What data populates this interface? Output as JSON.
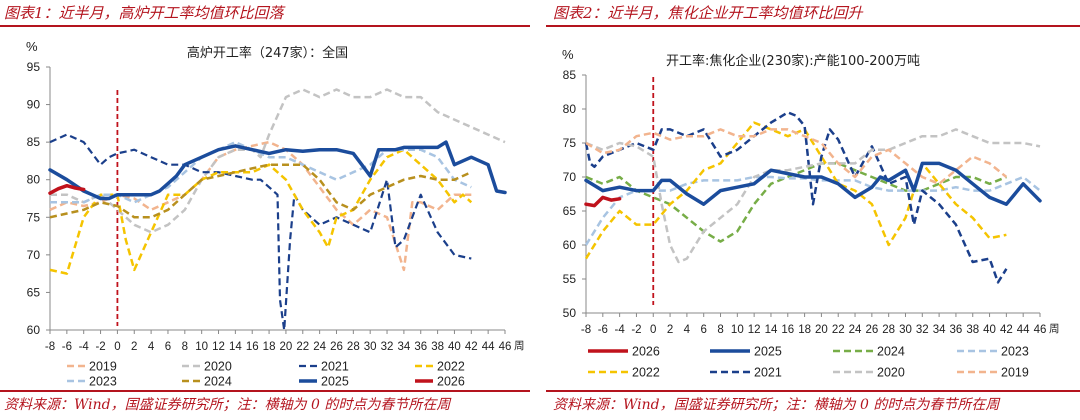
{
  "left": {
    "header": "图表1：近半月，高炉开工率均值环比回落",
    "source": "资料来源：Wind，国盛证券研究所；注：横轴为 0 的时点为春节所在周"
  },
  "right": {
    "header": "图表2：近半月，焦化企业开工率均值环比回升",
    "source": "资料来源：Wind，国盛证券研究所；注：横轴为 0 的时点为春节所在周"
  },
  "colors": {
    "2019": "#f2b48e",
    "2020": "#c3c3c3",
    "2021": "#1b3f8b",
    "2022": "#f5c400",
    "2023": "#a8c4e2",
    "2024": "#b8901e",
    "2025": "#1b4c9c",
    "2026": "#c0121c",
    "2024_green": "#77ad47",
    "header": "#b4141e",
    "divider": "#c0121c"
  },
  "chart_data": [
    {
      "type": "line",
      "title": "高炉开工率（247家）：全国",
      "ylabel": "%",
      "xlabel_suffix": "周",
      "xlim": [
        -8,
        46
      ],
      "ylim": [
        60,
        95
      ],
      "yticks": [
        60,
        65,
        70,
        75,
        80,
        85,
        90,
        95
      ],
      "xticks": [
        -8,
        -6,
        -4,
        -2,
        0,
        2,
        4,
        6,
        8,
        10,
        12,
        14,
        16,
        18,
        20,
        22,
        24,
        26,
        28,
        30,
        32,
        34,
        36,
        38,
        40,
        42,
        44,
        46
      ],
      "vline": 0,
      "legend_order": [
        "2019",
        "2020",
        "2021",
        "2022",
        "2023",
        "2024",
        "2025",
        "2026"
      ],
      "series": [
        {
          "name": "2019",
          "style": "dash",
          "width": 2.5,
          "x": [
            -8,
            -6,
            -4,
            -2,
            0,
            2,
            4,
            6,
            8,
            10,
            12,
            14,
            16,
            18,
            20,
            22,
            24,
            26,
            28,
            30,
            32,
            34,
            35,
            36,
            38,
            40,
            42
          ],
          "y": [
            76,
            77,
            76.5,
            77,
            78,
            77.5,
            76,
            77,
            78,
            80,
            83,
            84,
            84.5,
            85,
            84,
            82,
            79,
            76,
            74,
            76,
            75,
            68,
            77,
            77,
            76,
            78,
            78
          ]
        },
        {
          "name": "2020",
          "style": "dash",
          "width": 2.5,
          "x": [
            -8,
            -6,
            -4,
            -2,
            0,
            2,
            4,
            6,
            8,
            10,
            12,
            14,
            16,
            17,
            18,
            20,
            22,
            24,
            26,
            28,
            30,
            32,
            34,
            36,
            38,
            40,
            42,
            44,
            46
          ],
          "y": [
            78,
            78,
            77,
            78,
            76,
            74,
            73,
            74,
            76,
            80,
            83,
            84,
            84,
            83,
            86,
            91,
            92,
            91,
            92,
            91,
            91,
            92,
            91,
            91,
            89,
            88,
            87,
            86,
            85
          ]
        },
        {
          "name": "2021",
          "style": "dash",
          "width": 2.2,
          "x": [
            -8,
            -6,
            -4,
            -2,
            -1,
            0,
            2,
            4,
            6,
            8,
            10,
            12,
            14,
            16,
            17,
            18,
            19,
            19.3,
            19.8,
            20.5,
            21,
            22,
            24,
            26,
            28,
            30,
            32,
            33,
            34,
            36,
            38,
            40,
            42
          ],
          "y": [
            85,
            86,
            85,
            82,
            83,
            83.5,
            84,
            83,
            82,
            82,
            81,
            81,
            80.5,
            80,
            80,
            79,
            78,
            64,
            60,
            72,
            78,
            76,
            74,
            75,
            74,
            73,
            80,
            71,
            72,
            78,
            73,
            70,
            69.5
          ]
        },
        {
          "name": "2022",
          "style": "dash",
          "width": 2.5,
          "x": [
            -8,
            -6,
            -4,
            -2,
            0,
            1,
            2,
            4,
            6,
            8,
            10,
            12,
            14,
            16,
            18,
            20,
            22,
            24,
            25,
            26,
            28,
            30,
            32,
            34,
            36,
            38,
            40,
            41,
            42
          ],
          "y": [
            68,
            67.5,
            75,
            78,
            78,
            72,
            68,
            73,
            78,
            78,
            80,
            81,
            81,
            81,
            82,
            80,
            76,
            73,
            71,
            75,
            76,
            80,
            83,
            84,
            82,
            80,
            77,
            78,
            77
          ]
        },
        {
          "name": "2023",
          "style": "dash",
          "width": 2.5,
          "x": [
            -8,
            -6,
            -4,
            -2,
            0,
            2,
            4,
            6,
            8,
            10,
            12,
            14,
            16,
            18,
            20,
            22,
            24,
            26,
            28,
            30,
            32,
            34,
            36,
            38,
            40,
            42
          ],
          "y": [
            77,
            77,
            77,
            78,
            78,
            77,
            78,
            79,
            81,
            83,
            84,
            85,
            84,
            83,
            83,
            82,
            81,
            80,
            81,
            82,
            84,
            84,
            84,
            83,
            80,
            79
          ]
        },
        {
          "name": "2024",
          "style": "dash",
          "width": 2.5,
          "x": [
            -8,
            -6,
            -4,
            -2,
            0,
            2,
            4,
            6,
            8,
            10,
            12,
            14,
            16,
            18,
            20,
            22,
            24,
            26,
            28,
            30,
            32,
            34,
            36,
            38,
            40,
            42
          ],
          "y": [
            75,
            75.5,
            76,
            77,
            76.5,
            75,
            75,
            76,
            78,
            80,
            80.5,
            81,
            81.5,
            82,
            82,
            82,
            80,
            77,
            76,
            78,
            79,
            80,
            80.5,
            80,
            80,
            81
          ]
        },
        {
          "name": "2025",
          "style": "solid",
          "width": 3.5,
          "x": [
            -8,
            -6,
            -4,
            -3,
            -2,
            -1,
            0,
            1,
            2,
            3,
            4,
            5,
            6,
            7,
            8,
            10,
            12,
            14,
            16,
            18,
            20,
            22,
            24,
            26,
            28,
            29,
            30,
            31,
            32,
            33,
            34,
            36,
            38,
            39,
            40,
            42,
            44,
            45,
            46
          ],
          "y": [
            81.3,
            80,
            78.5,
            78,
            77.5,
            77.5,
            78,
            78,
            78,
            78,
            78,
            78.5,
            79.5,
            80.5,
            82,
            83,
            84,
            84.5,
            84,
            83.5,
            84,
            83.8,
            84,
            84,
            83.5,
            82,
            80.5,
            84,
            84,
            84,
            84.3,
            84.3,
            84.3,
            85,
            82,
            83,
            82,
            78.5,
            78.3
          ]
        },
        {
          "name": "2026",
          "style": "solid",
          "width": 3.5,
          "x": [
            -8,
            -7,
            -6,
            -5,
            -4
          ],
          "y": [
            78.2,
            78.8,
            79.2,
            78.9,
            78.7
          ]
        }
      ]
    },
    {
      "type": "line",
      "title": "开工率:焦化企业(230家):产能100-200万吨",
      "ylabel": "%",
      "xlabel_suffix": "周",
      "xlim": [
        -8,
        46
      ],
      "ylim": [
        50,
        85
      ],
      "yticks": [
        50,
        55,
        60,
        65,
        70,
        75,
        80,
        85
      ],
      "xticks": [
        -8,
        -6,
        -4,
        -2,
        0,
        2,
        4,
        6,
        8,
        10,
        12,
        14,
        16,
        18,
        20,
        22,
        24,
        26,
        28,
        30,
        32,
        34,
        36,
        38,
        40,
        42,
        44,
        46
      ],
      "vline": 0,
      "legend_order": [
        "2026",
        "2025",
        "2024",
        "2023",
        "2022",
        "2021",
        "2020",
        "2019"
      ],
      "series": [
        {
          "name": "2026",
          "style": "solid",
          "width": 3.5,
          "x": [
            -8,
            -7,
            -6,
            -5,
            -4
          ],
          "y": [
            66,
            65.8,
            67,
            66.6,
            66.8
          ]
        },
        {
          "name": "2025",
          "style": "solid",
          "width": 3.5,
          "x": [
            -8,
            -6,
            -4,
            -2,
            0,
            1,
            2,
            4,
            6,
            8,
            10,
            12,
            14,
            16,
            18,
            20,
            22,
            24,
            26,
            27,
            28,
            30,
            31,
            32,
            34,
            36,
            38,
            40,
            42,
            44,
            46
          ],
          "y": [
            69.5,
            68,
            68.5,
            68,
            68,
            69.5,
            69.5,
            67.5,
            66,
            68,
            68.5,
            69,
            71,
            70.5,
            70,
            70,
            69,
            67,
            68.5,
            70,
            69.5,
            71,
            68,
            72,
            72,
            71,
            69,
            67,
            66,
            69,
            66.5
          ]
        },
        {
          "name": "2024",
          "style": "dash",
          "width": 2.5,
          "x": [
            -8,
            -6,
            -4,
            -2,
            0,
            2,
            4,
            6,
            8,
            10,
            12,
            14,
            16,
            18,
            20,
            22,
            24,
            26,
            28,
            30,
            32,
            34,
            36,
            38,
            40,
            42
          ],
          "y": [
            70,
            69,
            70,
            68,
            67,
            66,
            64,
            62,
            60.5,
            62,
            66,
            69,
            70,
            71,
            72,
            72,
            71,
            70,
            69,
            68,
            68,
            69,
            70,
            70,
            69,
            70
          ]
        },
        {
          "name": "2023",
          "style": "dash",
          "width": 2.5,
          "x": [
            -8,
            -6,
            -4,
            -2,
            0,
            2,
            4,
            6,
            8,
            10,
            12,
            14,
            16,
            18,
            20,
            22,
            24,
            26,
            28,
            30,
            32,
            34,
            36,
            38,
            40,
            42,
            44,
            46
          ],
          "y": [
            60,
            64,
            67,
            68,
            68,
            68,
            69,
            69.5,
            69.5,
            69.5,
            70,
            70,
            69.8,
            69.8,
            69.5,
            69.5,
            69.5,
            68.5,
            68,
            68,
            68,
            68,
            68.5,
            68,
            68,
            69,
            70,
            68
          ]
        },
        {
          "name": "2022",
          "style": "dash",
          "width": 2.5,
          "x": [
            -8,
            -6,
            -4,
            -2,
            0,
            2,
            4,
            6,
            8,
            10,
            12,
            14,
            16,
            17,
            18,
            20,
            22,
            24,
            26,
            28,
            30,
            32,
            34,
            36,
            38,
            40,
            42
          ],
          "y": [
            58,
            62,
            65,
            63,
            63,
            66,
            68,
            71,
            72,
            75,
            78,
            77,
            76,
            76.5,
            77,
            73,
            69,
            68,
            66,
            60,
            64,
            72,
            69,
            66,
            64,
            61,
            61.5
          ]
        },
        {
          "name": "2021",
          "style": "dash",
          "width": 2.5,
          "x": [
            -8,
            -7.5,
            -7,
            -6,
            -4,
            -2,
            0,
            1,
            2,
            4,
            6,
            8,
            10,
            12,
            14,
            16,
            17,
            18,
            19,
            20,
            21,
            22,
            24,
            26,
            28,
            30,
            31,
            32,
            34,
            36,
            38,
            40,
            41,
            42
          ],
          "y": [
            75,
            72,
            71.5,
            73,
            74,
            75,
            74,
            77,
            77,
            76,
            77,
            73,
            74,
            76,
            78,
            79.5,
            79,
            77.5,
            66,
            73,
            77,
            75.5,
            70,
            74.5,
            69,
            70,
            63,
            68,
            66,
            63,
            57.5,
            58,
            54.5,
            56.5
          ]
        },
        {
          "name": "2020",
          "style": "dash",
          "width": 2.5,
          "x": [
            -8,
            -6,
            -4,
            -2,
            0,
            1,
            2,
            3,
            4,
            6,
            8,
            10,
            12,
            14,
            16,
            18,
            20,
            22,
            24,
            26,
            28,
            30,
            32,
            34,
            36,
            38,
            40,
            42,
            44,
            46
          ],
          "y": [
            75,
            74,
            75,
            74.5,
            73,
            66,
            60,
            57.5,
            58,
            62,
            64,
            66,
            70,
            71,
            71,
            71.5,
            72,
            72,
            72,
            74,
            74,
            75,
            76,
            76,
            77,
            76,
            75,
            75,
            75,
            74.5
          ]
        },
        {
          "name": "2019",
          "style": "dash",
          "width": 2.5,
          "x": [
            -8,
            -6,
            -4,
            -2,
            0,
            2,
            4,
            6,
            8,
            10,
            12,
            14,
            16,
            18,
            20,
            22,
            24,
            26,
            28,
            30,
            32,
            34,
            36,
            38,
            40,
            42
          ],
          "y": [
            75,
            73.5,
            74,
            76,
            76.5,
            75.5,
            76,
            76,
            77,
            76,
            76,
            77,
            77,
            76,
            75,
            72,
            70,
            73,
            74,
            72,
            70,
            69,
            71,
            73,
            72,
            70
          ]
        }
      ]
    }
  ]
}
